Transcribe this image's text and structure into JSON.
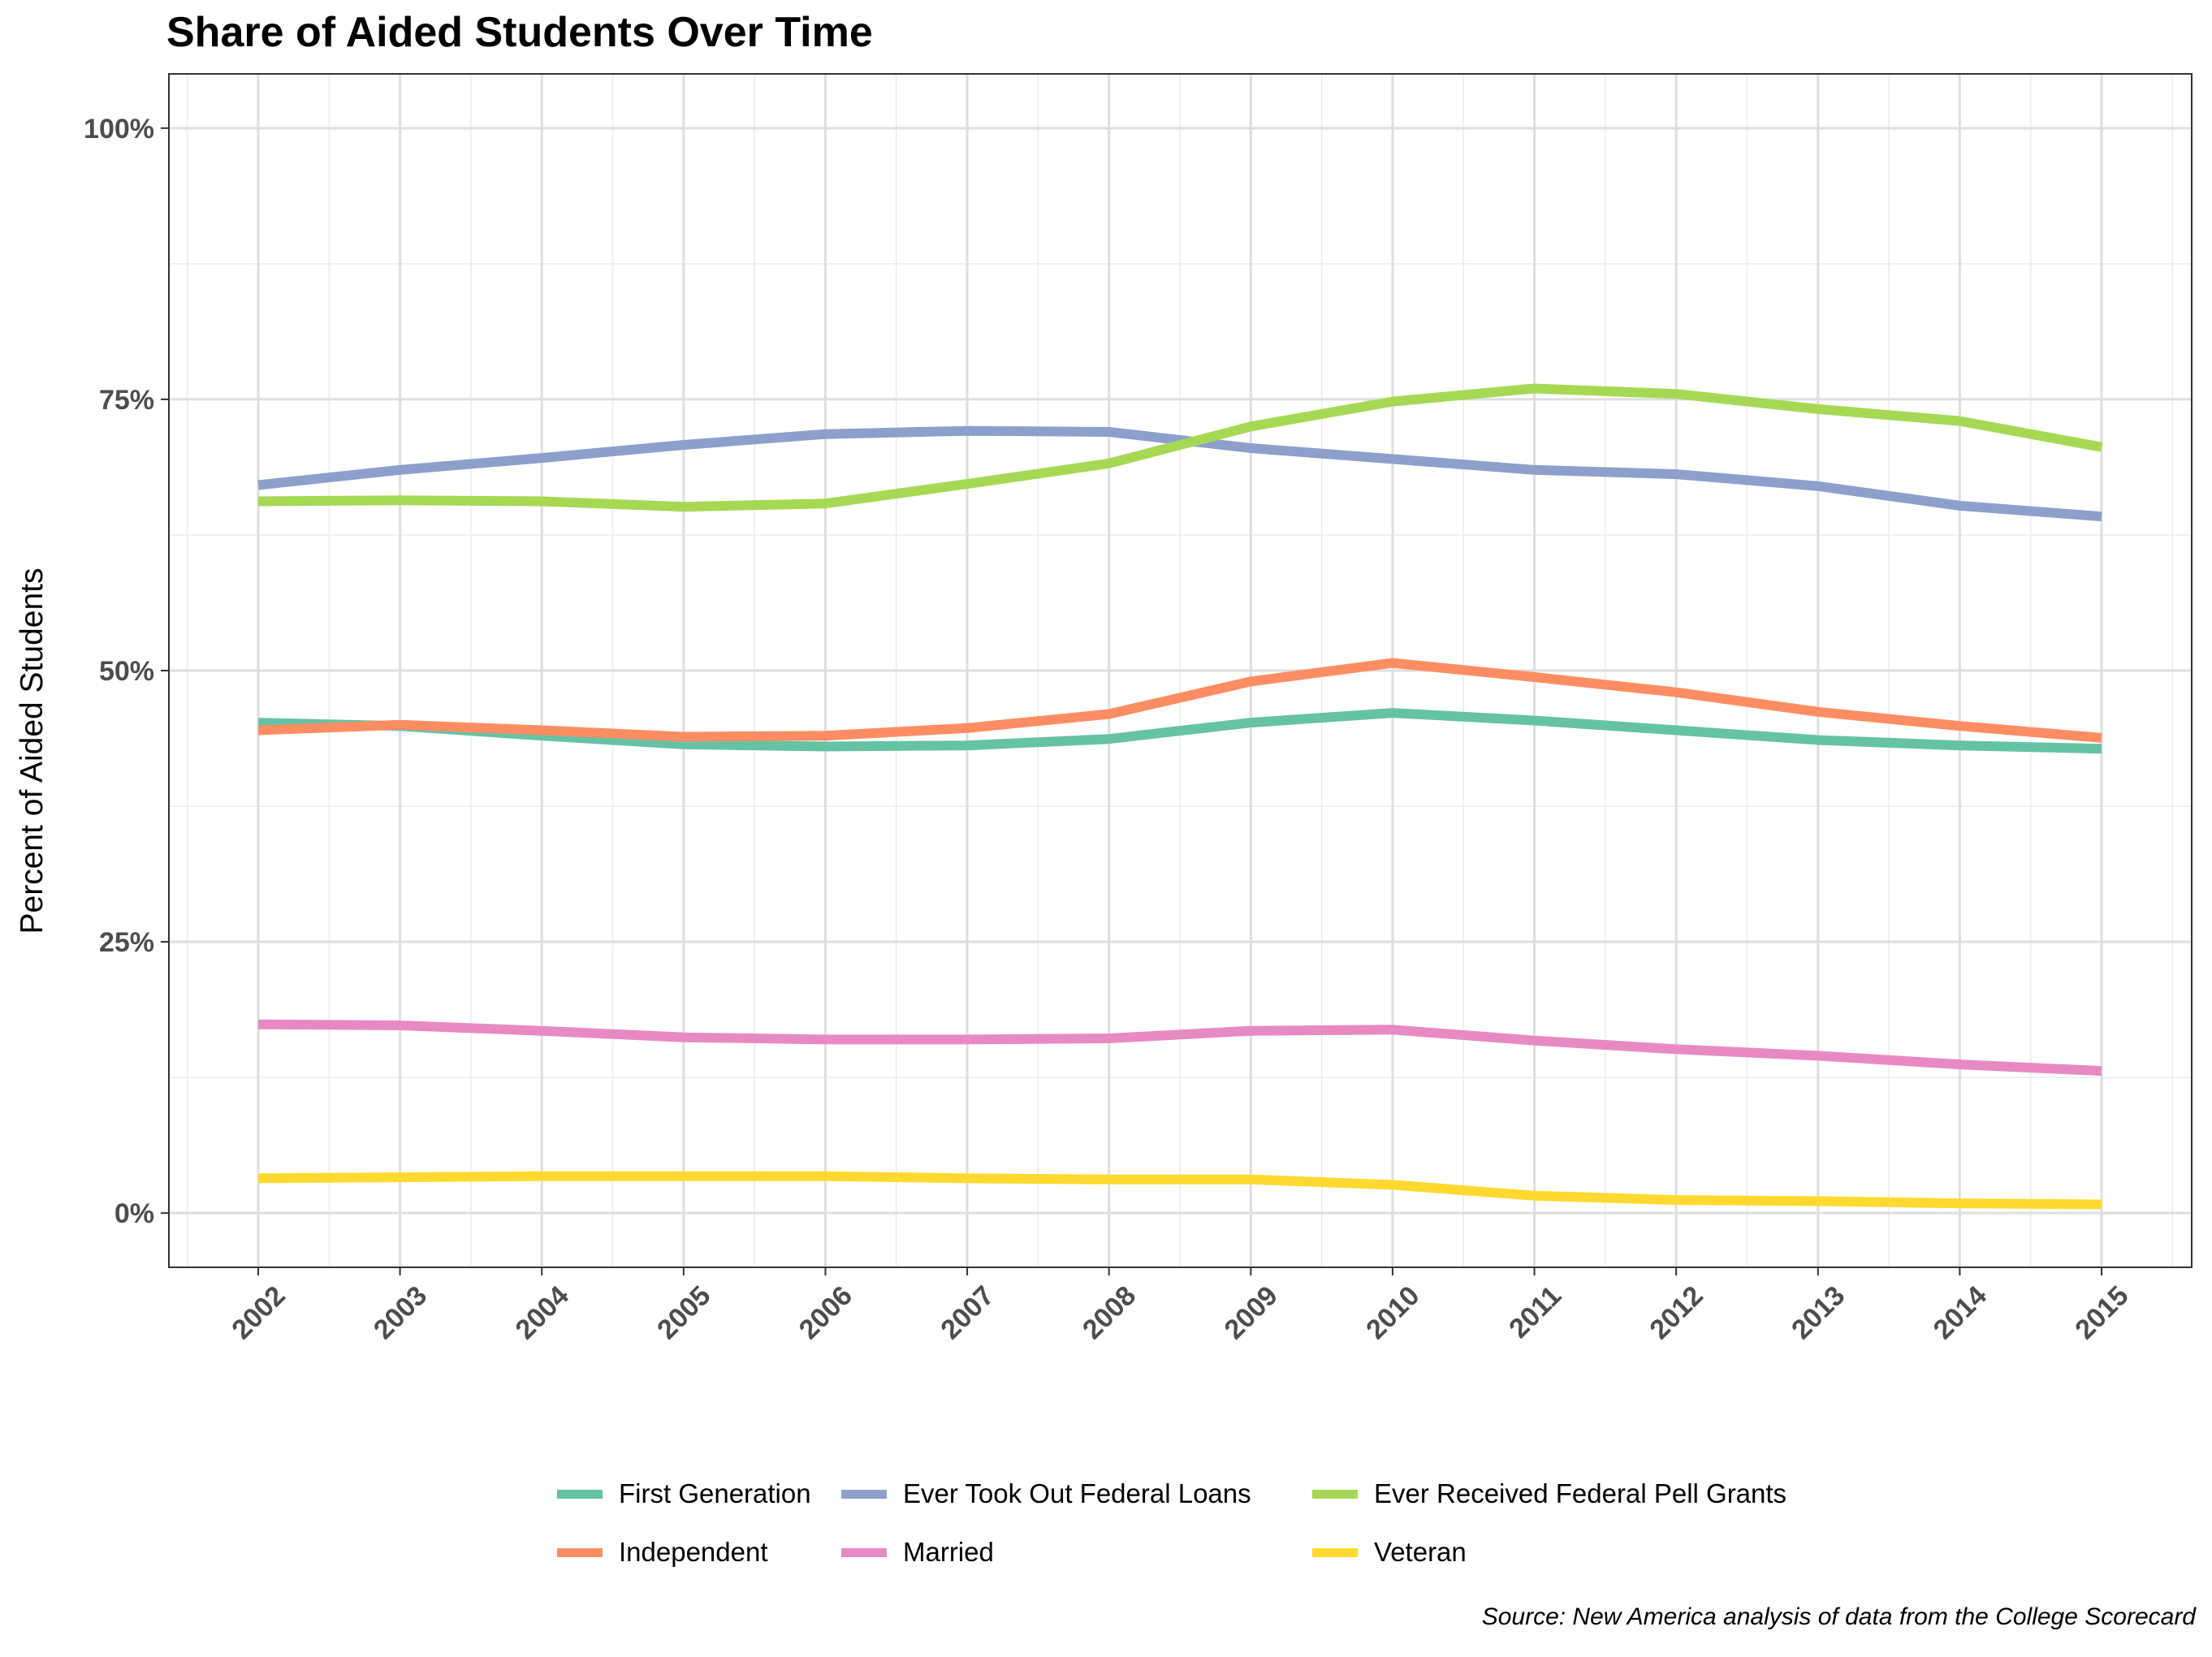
{
  "chart_data": {
    "type": "line",
    "title": "Share of Aided Students Over Time",
    "xlabel": "",
    "ylabel": "Percent of Aided Students",
    "x": [
      "2002",
      "2003",
      "2004",
      "2005",
      "2006",
      "2007",
      "2008",
      "2009",
      "2010",
      "2011",
      "2012",
      "2013",
      "2014",
      "2015"
    ],
    "ylim": [
      -0.05,
      1.05
    ],
    "yticks": [
      0,
      0.25,
      0.5,
      0.75,
      1.0
    ],
    "ytick_labels": [
      "0%",
      "25%",
      "50%",
      "75%",
      "100%"
    ],
    "grid": true,
    "legend_position": "bottom",
    "series": [
      {
        "name": "First Generation",
        "color": "#66C2A5",
        "values": [
          0.452,
          0.449,
          0.44,
          0.432,
          0.43,
          0.431,
          0.437,
          0.452,
          0.461,
          0.454,
          0.445,
          0.436,
          0.431,
          0.428
        ]
      },
      {
        "name": "Ever Took Out Federal Loans",
        "color": "#8DA0CB",
        "values": [
          0.671,
          0.685,
          0.696,
          0.708,
          0.718,
          0.721,
          0.72,
          0.705,
          0.695,
          0.685,
          0.681,
          0.67,
          0.652,
          0.642
        ]
      },
      {
        "name": "Ever Received Federal Pell Grants",
        "color": "#A6D854",
        "values": [
          0.656,
          0.657,
          0.656,
          0.651,
          0.654,
          0.672,
          0.691,
          0.725,
          0.748,
          0.76,
          0.755,
          0.741,
          0.73,
          0.706
        ]
      },
      {
        "name": "Independent",
        "color": "#FC8D62",
        "values": [
          0.445,
          0.45,
          0.445,
          0.439,
          0.44,
          0.447,
          0.46,
          0.49,
          0.507,
          0.494,
          0.48,
          0.462,
          0.449,
          0.438
        ]
      },
      {
        "name": "Married",
        "color": "#E78AC3",
        "values": [
          0.174,
          0.173,
          0.168,
          0.162,
          0.16,
          0.16,
          0.161,
          0.168,
          0.169,
          0.159,
          0.151,
          0.145,
          0.137,
          0.131
        ]
      },
      {
        "name": "Veteran",
        "color": "#FFD92F",
        "values": [
          0.032,
          0.033,
          0.034,
          0.034,
          0.034,
          0.032,
          0.031,
          0.031,
          0.026,
          0.016,
          0.012,
          0.011,
          0.009,
          0.008
        ]
      }
    ],
    "source": "Source: New America analysis of data from the College Scorecard"
  }
}
